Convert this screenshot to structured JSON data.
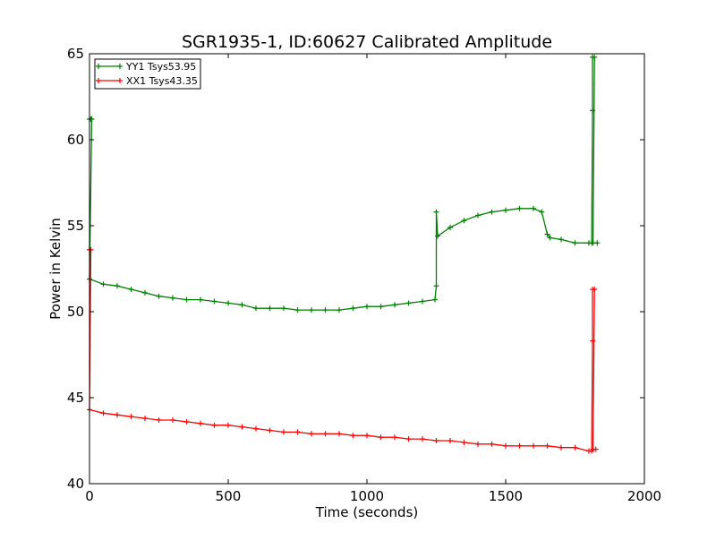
{
  "chart_data": {
    "type": "line",
    "title": "SGR1935-1, ID:60627 Calibrated Amplitude",
    "xlabel": "Time (seconds)",
    "ylabel": "Power in Kelvin",
    "xlim": [
      0,
      2000
    ],
    "ylim": [
      40,
      65
    ],
    "xticks": [
      0,
      500,
      1000,
      1500,
      2000
    ],
    "xtick_labels": [
      "0",
      "500",
      "1000",
      "1500",
      "2000"
    ],
    "yticks": [
      40,
      45,
      50,
      55,
      60,
      65
    ],
    "ytick_labels": [
      "40",
      "45",
      "50",
      "55",
      "60",
      "65"
    ],
    "grid": false,
    "legend_position": "top-left",
    "series": [
      {
        "name": "YY1 Tsys53.95",
        "color": "#008000",
        "marker": "+",
        "points": [
          [
            0,
            61.2
          ],
          [
            5,
            61.2
          ],
          [
            8,
            61.2
          ],
          [
            0,
            51.9
          ],
          [
            50,
            51.6
          ],
          [
            100,
            51.5
          ],
          [
            150,
            51.3
          ],
          [
            200,
            51.1
          ],
          [
            250,
            50.9
          ],
          [
            300,
            50.8
          ],
          [
            350,
            50.7
          ],
          [
            400,
            50.7
          ],
          [
            450,
            50.6
          ],
          [
            500,
            50.5
          ],
          [
            550,
            50.4
          ],
          [
            600,
            50.2
          ],
          [
            650,
            50.2
          ],
          [
            700,
            50.2
          ],
          [
            750,
            50.1
          ],
          [
            800,
            50.1
          ],
          [
            850,
            50.1
          ],
          [
            900,
            50.1
          ],
          [
            950,
            50.2
          ],
          [
            1000,
            50.3
          ],
          [
            1050,
            50.3
          ],
          [
            1100,
            50.4
          ],
          [
            1150,
            50.5
          ],
          [
            1200,
            50.6
          ],
          [
            1245,
            50.7
          ],
          [
            1250,
            51.5
          ],
          [
            1250,
            55.8
          ],
          [
            1255,
            54.4
          ],
          [
            1300,
            54.9
          ],
          [
            1350,
            55.3
          ],
          [
            1400,
            55.6
          ],
          [
            1450,
            55.8
          ],
          [
            1500,
            55.9
          ],
          [
            1550,
            56.0
          ],
          [
            1600,
            56.0
          ],
          [
            1630,
            55.8
          ],
          [
            1650,
            54.5
          ],
          [
            1660,
            54.3
          ],
          [
            1700,
            54.2
          ],
          [
            1750,
            54.0
          ],
          [
            1800,
            54.0
          ],
          [
            1810,
            54.0
          ],
          [
            1813,
            61.7
          ],
          [
            1813,
            64.8
          ],
          [
            1820,
            64.8
          ],
          [
            1815,
            54.0
          ],
          [
            1830,
            54.0
          ]
        ]
      },
      {
        "name": "XX1 Tsys43.35",
        "color": "#ff0000",
        "marker": "+",
        "points": [
          [
            0,
            53.6
          ],
          [
            5,
            53.6
          ],
          [
            0,
            44.3
          ],
          [
            50,
            44.1
          ],
          [
            100,
            44.0
          ],
          [
            150,
            43.9
          ],
          [
            200,
            43.8
          ],
          [
            250,
            43.7
          ],
          [
            300,
            43.7
          ],
          [
            350,
            43.6
          ],
          [
            400,
            43.5
          ],
          [
            450,
            43.4
          ],
          [
            500,
            43.4
          ],
          [
            550,
            43.3
          ],
          [
            600,
            43.2
          ],
          [
            650,
            43.1
          ],
          [
            700,
            43.0
          ],
          [
            750,
            43.0
          ],
          [
            800,
            42.9
          ],
          [
            850,
            42.9
          ],
          [
            900,
            42.9
          ],
          [
            950,
            42.8
          ],
          [
            1000,
            42.8
          ],
          [
            1050,
            42.7
          ],
          [
            1100,
            42.7
          ],
          [
            1150,
            42.6
          ],
          [
            1200,
            42.6
          ],
          [
            1250,
            42.5
          ],
          [
            1300,
            42.5
          ],
          [
            1350,
            42.4
          ],
          [
            1400,
            42.3
          ],
          [
            1450,
            42.3
          ],
          [
            1500,
            42.2
          ],
          [
            1550,
            42.2
          ],
          [
            1600,
            42.2
          ],
          [
            1650,
            42.2
          ],
          [
            1700,
            42.1
          ],
          [
            1750,
            42.1
          ],
          [
            1800,
            41.9
          ],
          [
            1810,
            41.9
          ],
          [
            1813,
            48.3
          ],
          [
            1813,
            51.3
          ],
          [
            1820,
            51.3
          ],
          [
            1815,
            42.0
          ],
          [
            1825,
            42.0
          ]
        ]
      }
    ]
  }
}
